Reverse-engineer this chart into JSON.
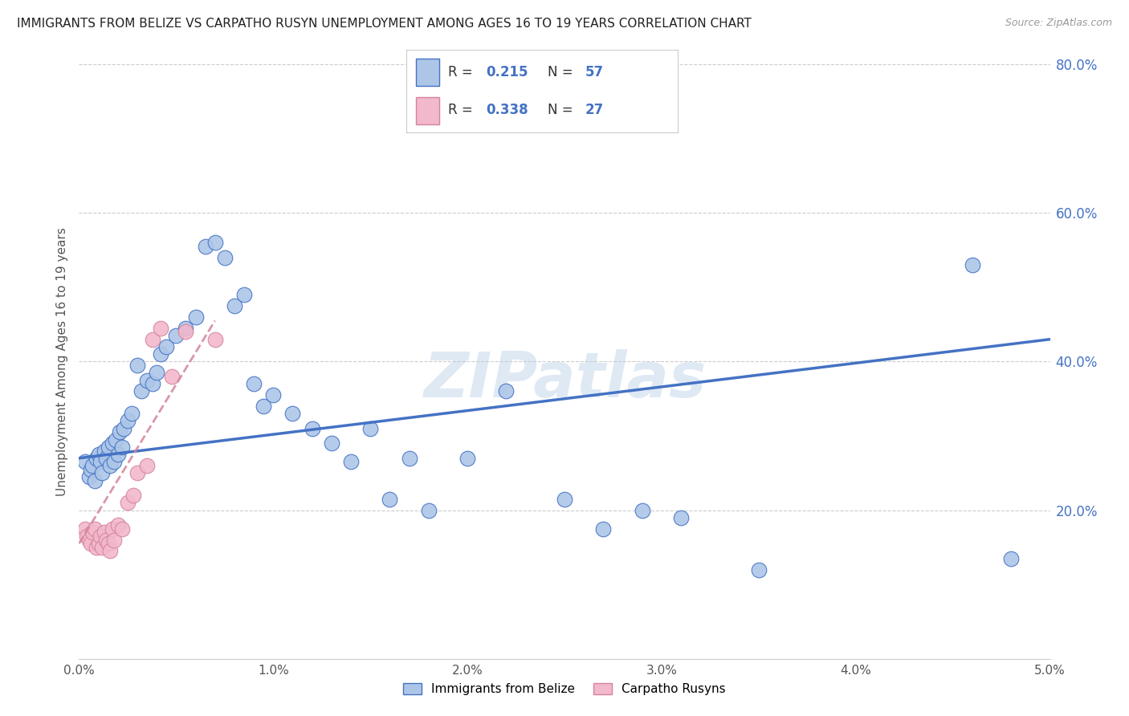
{
  "title": "IMMIGRANTS FROM BELIZE VS CARPATHO RUSYN UNEMPLOYMENT AMONG AGES 16 TO 19 YEARS CORRELATION CHART",
  "source": "Source: ZipAtlas.com",
  "xlabel_belize": "Immigrants from Belize",
  "xlabel_rusyn": "Carpatho Rusyns",
  "ylabel": "Unemployment Among Ages 16 to 19 years",
  "xmin": 0.0,
  "xmax": 0.05,
  "ymin": 0.0,
  "ymax": 0.8,
  "xtick_labels": [
    "0.0%",
    "1.0%",
    "2.0%",
    "3.0%",
    "4.0%",
    "5.0%"
  ],
  "xtick_values": [
    0.0,
    0.01,
    0.02,
    0.03,
    0.04,
    0.05
  ],
  "ytick_labels": [
    "20.0%",
    "40.0%",
    "60.0%",
    "80.0%"
  ],
  "ytick_values": [
    0.2,
    0.4,
    0.6,
    0.8
  ],
  "r_belize": "0.215",
  "n_belize": "57",
  "r_rusyn": "0.338",
  "n_rusyn": "27",
  "color_belize": "#adc6e8",
  "color_rusyn": "#f2b8cc",
  "line_color_belize": "#4472c4",
  "line_color_rusyn": "#d4849a",
  "blue_value_color": "#4472c4",
  "watermark": "ZIPatlas",
  "belize_x": [
    0.0003,
    0.0005,
    0.0006,
    0.0007,
    0.0008,
    0.0009,
    0.001,
    0.0011,
    0.0012,
    0.0013,
    0.0014,
    0.0015,
    0.0016,
    0.0017,
    0.0018,
    0.0019,
    0.002,
    0.0021,
    0.0022,
    0.0023,
    0.0025,
    0.0027,
    0.003,
    0.0032,
    0.0035,
    0.0038,
    0.004,
    0.0042,
    0.0045,
    0.005,
    0.0055,
    0.006,
    0.0065,
    0.007,
    0.0075,
    0.008,
    0.0085,
    0.009,
    0.0095,
    0.01,
    0.011,
    0.012,
    0.013,
    0.014,
    0.015,
    0.016,
    0.017,
    0.018,
    0.02,
    0.022,
    0.025,
    0.027,
    0.029,
    0.031,
    0.035,
    0.046,
    0.048
  ],
  "belize_y": [
    0.265,
    0.245,
    0.255,
    0.26,
    0.24,
    0.27,
    0.275,
    0.265,
    0.25,
    0.28,
    0.27,
    0.285,
    0.26,
    0.29,
    0.265,
    0.295,
    0.275,
    0.305,
    0.285,
    0.31,
    0.32,
    0.33,
    0.395,
    0.36,
    0.375,
    0.37,
    0.385,
    0.41,
    0.42,
    0.435,
    0.445,
    0.46,
    0.555,
    0.56,
    0.54,
    0.475,
    0.49,
    0.37,
    0.34,
    0.355,
    0.33,
    0.31,
    0.29,
    0.265,
    0.31,
    0.215,
    0.27,
    0.2,
    0.27,
    0.36,
    0.215,
    0.175,
    0.2,
    0.19,
    0.12,
    0.53,
    0.135
  ],
  "rusyn_x": [
    0.0003,
    0.0004,
    0.0005,
    0.0006,
    0.0007,
    0.0008,
    0.0009,
    0.001,
    0.0011,
    0.0012,
    0.0013,
    0.0014,
    0.0015,
    0.0016,
    0.0017,
    0.0018,
    0.002,
    0.0022,
    0.0025,
    0.0028,
    0.003,
    0.0035,
    0.0038,
    0.0042,
    0.0048,
    0.0055,
    0.007
  ],
  "rusyn_y": [
    0.175,
    0.165,
    0.16,
    0.155,
    0.17,
    0.175,
    0.15,
    0.155,
    0.165,
    0.15,
    0.17,
    0.16,
    0.155,
    0.145,
    0.175,
    0.16,
    0.18,
    0.175,
    0.21,
    0.22,
    0.25,
    0.26,
    0.43,
    0.445,
    0.38,
    0.44,
    0.43
  ],
  "belize_line_x0": 0.0,
  "belize_line_x1": 0.05,
  "belize_line_y0": 0.27,
  "belize_line_y1": 0.43,
  "rusyn_line_x0": 0.0,
  "rusyn_line_x1": 0.007,
  "rusyn_line_y0": 0.155,
  "rusyn_line_y1": 0.455
}
